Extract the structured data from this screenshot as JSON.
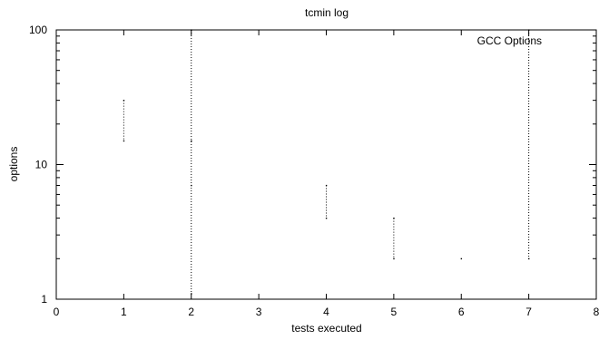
{
  "chart_data": {
    "type": "line",
    "title": "tcmin log",
    "xlabel": "tests executed",
    "ylabel": "options",
    "xlim": [
      0,
      8
    ],
    "ylim": [
      1,
      100
    ],
    "y_scale": "log",
    "x_ticks": [
      "0",
      "1",
      "2",
      "3",
      "4",
      "5",
      "6",
      "7",
      "8"
    ],
    "y_ticks": [
      "1",
      "10",
      "100"
    ],
    "grid": false,
    "legend_position": "top-right",
    "series": [
      {
        "name": "GCC Options",
        "color": "#000000",
        "style": "dotted",
        "points": [
          {
            "x": 1,
            "y": 30
          },
          {
            "x": 1,
            "y": 15
          },
          {
            "x": 2,
            "y": 100
          },
          {
            "x": 2,
            "y": 15
          },
          {
            "x": 2,
            "y": 7
          },
          {
            "x": 2,
            "y": 1.1
          },
          {
            "x": 4,
            "y": 7
          },
          {
            "x": 4,
            "y": 4
          },
          {
            "x": 5,
            "y": 4
          },
          {
            "x": 5,
            "y": 2
          },
          {
            "x": 6,
            "y": 2
          },
          {
            "x": 7,
            "y": 100
          },
          {
            "x": 7,
            "y": 2
          }
        ]
      }
    ]
  }
}
